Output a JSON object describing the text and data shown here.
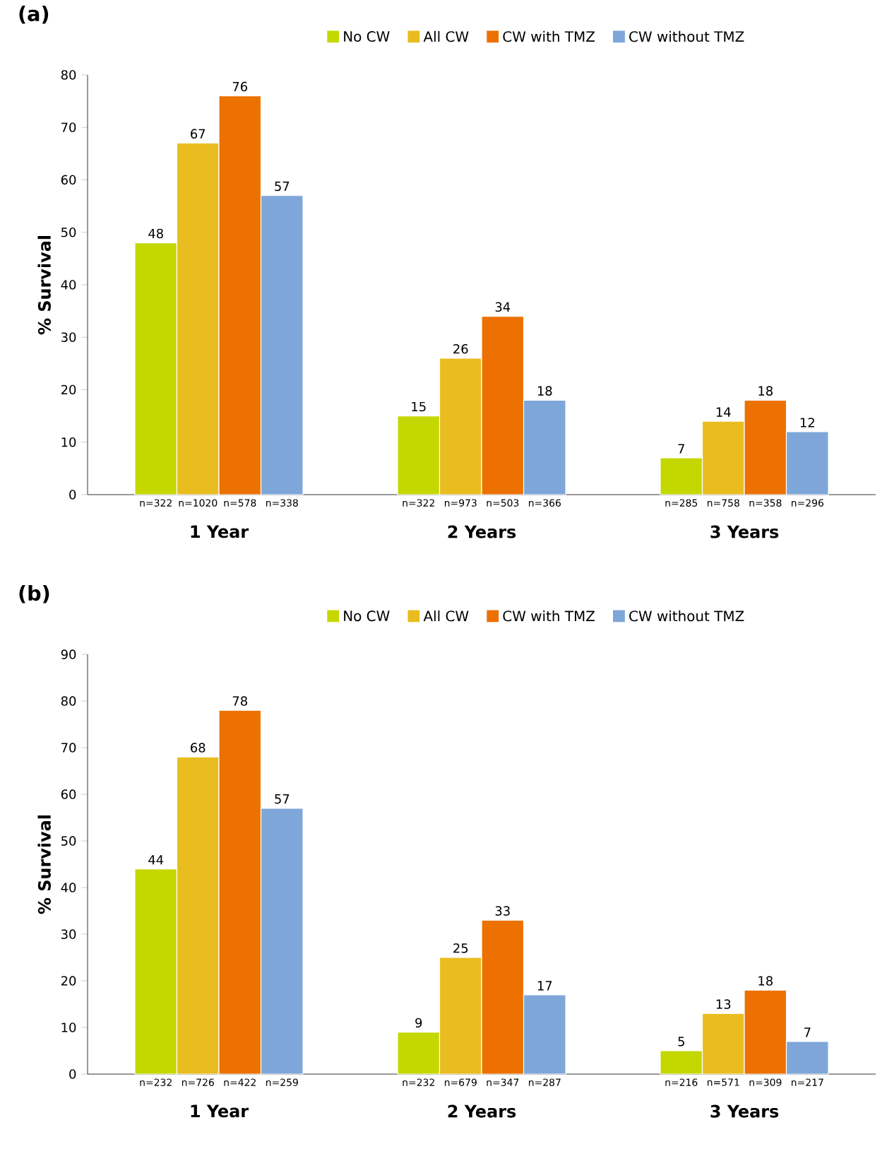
{
  "chart_data": [
    {
      "type": "bar",
      "title": "(a)",
      "ylabel": "% Survival",
      "categories": [
        "1 Year",
        "2 Years",
        "3 Years"
      ],
      "series": [
        {
          "name": "No CW",
          "color": "#c4d800",
          "values": [
            48,
            15,
            7
          ]
        },
        {
          "name": "All CW",
          "color": "#e9bd1f",
          "values": [
            67,
            26,
            14
          ]
        },
        {
          "name": "CW with TMZ",
          "color": "#ec7100",
          "values": [
            76,
            34,
            18
          ]
        },
        {
          "name": "CW without TMZ",
          "color": "#7ea6d9",
          "values": [
            57,
            18,
            12
          ]
        }
      ],
      "ylim": [
        0,
        80
      ],
      "yticks": [
        0,
        10,
        20,
        30,
        40,
        50,
        60,
        70,
        80
      ],
      "data_labels": true,
      "legend": "top",
      "annotations": [
        "n=322",
        "n=1020",
        "n=578",
        "n=338",
        "n=322",
        "n=973",
        "n=503",
        "n=366",
        "n=285",
        "n=758",
        "n=358",
        "n=296"
      ]
    },
    {
      "type": "bar",
      "title": "(b)",
      "ylabel": "% Survival",
      "categories": [
        "1 Year",
        "2 Years",
        "3 Years"
      ],
      "series": [
        {
          "name": "No CW",
          "color": "#c4d800",
          "values": [
            44,
            9,
            5
          ]
        },
        {
          "name": "All CW",
          "color": "#e9bd1f",
          "values": [
            68,
            25,
            13
          ]
        },
        {
          "name": "CW with TMZ",
          "color": "#ec7100",
          "values": [
            78,
            33,
            18
          ]
        },
        {
          "name": "CW without TMZ",
          "color": "#7ea6d9",
          "values": [
            57,
            17,
            7
          ]
        }
      ],
      "ylim": [
        0,
        90
      ],
      "yticks": [
        0,
        10,
        20,
        30,
        40,
        50,
        60,
        70,
        80,
        90
      ],
      "data_labels": true,
      "legend": "top",
      "annotations": [
        "n=232",
        "n=726",
        "n=422",
        "n=259",
        "n=232",
        "n=679",
        "n=347",
        "n=287",
        "n=216",
        "n=571",
        "n=309",
        "n=217"
      ]
    }
  ]
}
